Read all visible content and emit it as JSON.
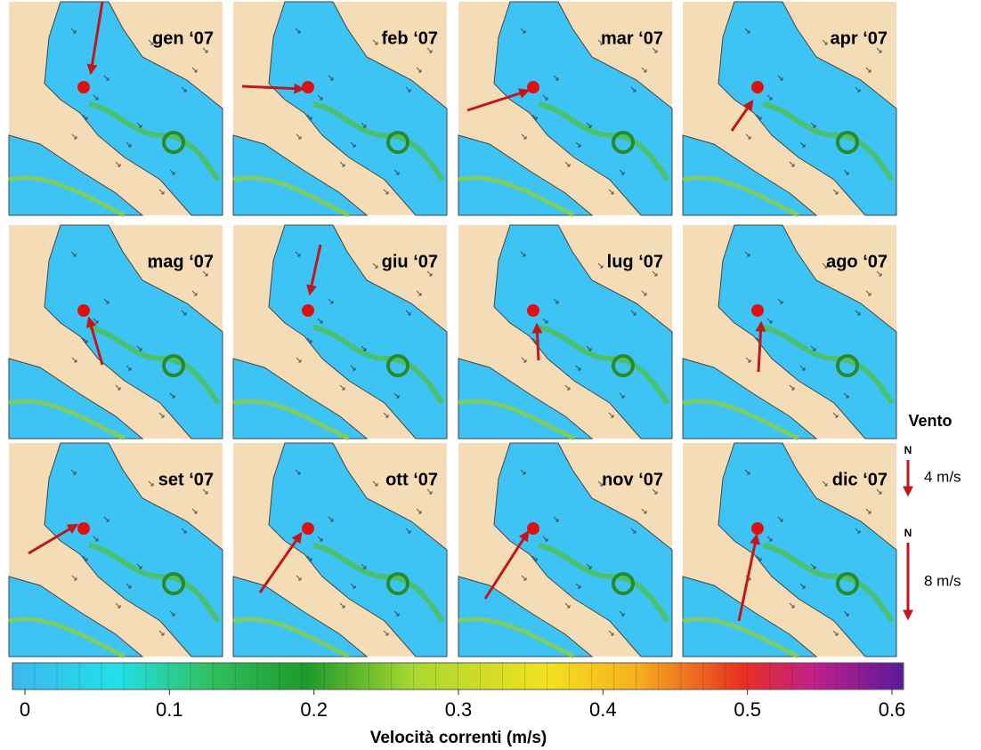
{
  "panels": [
    {
      "label": "gen ‘07"
    },
    {
      "label": "feb ‘07"
    },
    {
      "label": "mar ‘07"
    },
    {
      "label": "apr ‘07"
    },
    {
      "label": "mag ‘07"
    },
    {
      "label": "giu ‘07"
    },
    {
      "label": "lug ‘07"
    },
    {
      "label": "ago ‘07"
    },
    {
      "label": "set ‘07"
    },
    {
      "label": "ott ‘07"
    },
    {
      "label": "nov ‘07"
    },
    {
      "label": "dic ‘07"
    }
  ],
  "wind_legend": {
    "title": "Vento",
    "items": [
      {
        "north": "N",
        "label": "4 m/s"
      },
      {
        "north": "N",
        "label": "8 m/s"
      }
    ]
  },
  "colorbar": {
    "lim": [
      0,
      0.6
    ],
    "ticks": [
      0,
      0.1,
      0.2,
      0.3,
      0.4,
      0.5,
      0.6
    ],
    "title": "Velocità correnti (m/s)"
  }
}
